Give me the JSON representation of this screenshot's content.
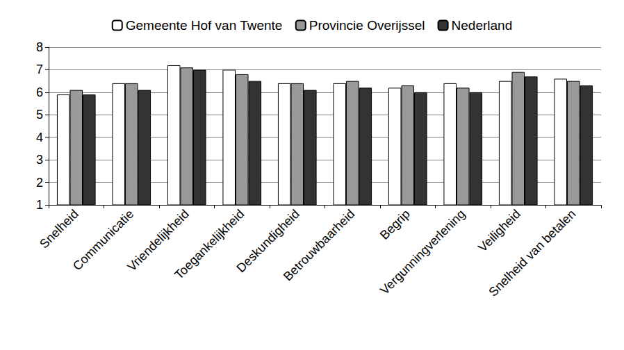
{
  "chart_data": {
    "type": "bar",
    "categories": [
      "Snelheid",
      "Communicatie",
      "Vriendelijkheid",
      "Toegankelijkheid",
      "Deskundigheid",
      "Betrouwbaarheid",
      "Begrip",
      "Vergunningverlening",
      "Veiligheid",
      "Snelheid van betalen"
    ],
    "series": [
      {
        "name": "Gemeente Hof van Twente",
        "color": "#ffffff",
        "values": [
          5.9,
          6.4,
          7.2,
          7.0,
          6.4,
          6.4,
          6.2,
          6.4,
          6.5,
          6.6
        ]
      },
      {
        "name": "Provincie Overijssel",
        "color": "#999999",
        "values": [
          6.1,
          6.4,
          7.1,
          6.8,
          6.4,
          6.5,
          6.3,
          6.2,
          6.9,
          6.5
        ]
      },
      {
        "name": "Nederland",
        "color": "#333333",
        "values": [
          5.9,
          6.1,
          7.0,
          6.5,
          6.1,
          6.2,
          6.0,
          6.0,
          6.7,
          6.3
        ]
      }
    ],
    "ylim": [
      1,
      8
    ],
    "yticks": [
      1,
      2,
      3,
      4,
      5,
      6,
      7,
      8
    ],
    "grid": true,
    "legend": "top"
  }
}
